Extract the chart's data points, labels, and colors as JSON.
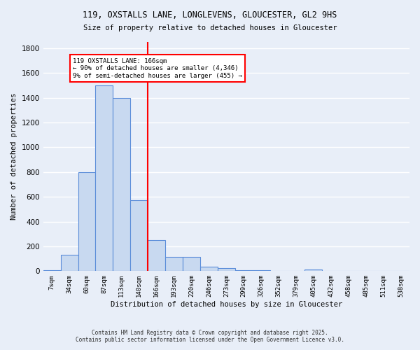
{
  "title_line1": "119, OXSTALLS LANE, LONGLEVENS, GLOUCESTER, GL2 9HS",
  "title_line2": "Size of property relative to detached houses in Gloucester",
  "xlabel": "Distribution of detached houses by size in Gloucester",
  "ylabel": "Number of detached properties",
  "bin_labels": [
    "7sqm",
    "34sqm",
    "60sqm",
    "87sqm",
    "113sqm",
    "140sqm",
    "166sqm",
    "193sqm",
    "220sqm",
    "246sqm",
    "273sqm",
    "299sqm",
    "326sqm",
    "352sqm",
    "379sqm",
    "405sqm",
    "432sqm",
    "458sqm",
    "485sqm",
    "511sqm",
    "538sqm"
  ],
  "bar_values": [
    10,
    130,
    800,
    1500,
    1400,
    575,
    250,
    115,
    115,
    35,
    25,
    10,
    10,
    0,
    0,
    15,
    0,
    0,
    0,
    0,
    0
  ],
  "bar_color": "#c8d9f0",
  "bar_edge_color": "#5b8dd9",
  "vline_color": "red",
  "vline_idx": 6,
  "annotation_text": "119 OXSTALLS LANE: 166sqm\n← 90% of detached houses are smaller (4,346)\n9% of semi-detached houses are larger (455) →",
  "annotation_box_color": "white",
  "annotation_box_edge": "red",
  "ylim": [
    0,
    1850
  ],
  "yticks": [
    0,
    200,
    400,
    600,
    800,
    1000,
    1200,
    1400,
    1600,
    1800
  ],
  "background_color": "#e8eef8",
  "grid_color": "white",
  "footer_line1": "Contains HM Land Registry data © Crown copyright and database right 2025.",
  "footer_line2": "Contains public sector information licensed under the Open Government Licence v3.0."
}
